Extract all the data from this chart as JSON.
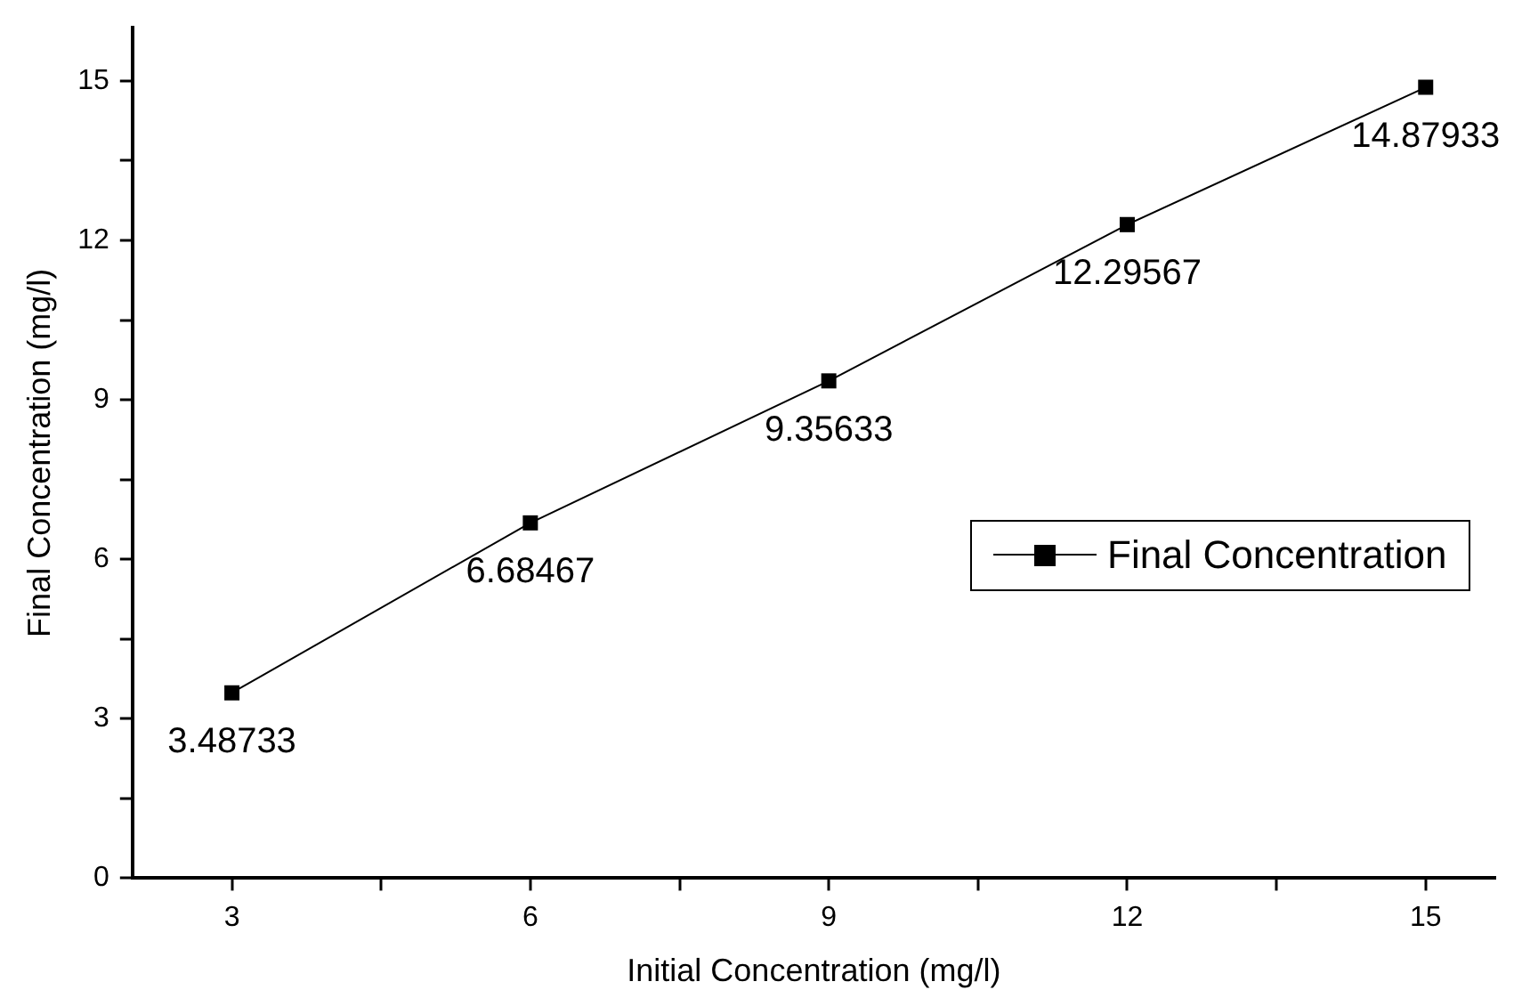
{
  "chart_data": {
    "type": "line",
    "xlabel": "Initial Concentration (mg/l)",
    "ylabel": "Final Concentration (mg/l)",
    "x": [
      3,
      6,
      9,
      12,
      15
    ],
    "series": [
      {
        "name": "Final Concentration",
        "color": "#000000",
        "values": [
          3.48733,
          6.68467,
          9.35633,
          12.29567,
          14.87933
        ]
      }
    ],
    "xlim": [
      2,
      15.7
    ],
    "ylim": [
      0,
      16
    ],
    "xticks": [
      3,
      {
        "value": 4.5,
        "label": null
      },
      6,
      {
        "value": 7.5,
        "label": null
      },
      9,
      {
        "value": 10.5,
        "label": null
      },
      12,
      {
        "value": 13.5,
        "label": null
      },
      15
    ],
    "yticks": [
      0,
      {
        "value": 1.5,
        "label": null
      },
      3,
      {
        "value": 4.5,
        "label": null
      },
      6,
      {
        "value": 7.5,
        "label": null
      },
      9,
      {
        "value": 10.5,
        "label": null
      },
      12,
      {
        "value": 13.5,
        "label": null
      },
      15
    ],
    "marker": "square",
    "line_style": "solid",
    "data_labels": true,
    "grid": false,
    "legend": "right"
  }
}
